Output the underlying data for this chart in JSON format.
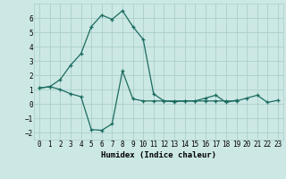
{
  "xlabel": "Humidex (Indice chaleur)",
  "bg_color": "#cce8e4",
  "grid_color": "#aacfcb",
  "line_color": "#1a6b60",
  "xlim": [
    -0.5,
    23.5
  ],
  "ylim": [
    -2.5,
    7.0
  ],
  "yticks": [
    -2,
    -1,
    0,
    1,
    2,
    3,
    4,
    5,
    6
  ],
  "xticks": [
    0,
    1,
    2,
    3,
    4,
    5,
    6,
    7,
    8,
    9,
    10,
    11,
    12,
    13,
    14,
    15,
    16,
    17,
    18,
    19,
    20,
    21,
    22,
    23
  ],
  "line1_x": [
    0,
    1,
    2,
    3,
    4,
    5,
    6,
    7,
    8,
    9,
    10,
    11,
    12,
    13,
    14,
    15,
    16,
    17,
    18,
    19,
    20,
    21,
    22,
    23
  ],
  "line1_y": [
    1.1,
    1.2,
    1.7,
    2.7,
    3.5,
    5.4,
    6.2,
    5.9,
    6.5,
    5.4,
    4.5,
    0.7,
    0.2,
    0.15,
    0.2,
    0.2,
    0.4,
    0.6,
    0.1,
    0.25,
    null,
    null,
    null,
    null
  ],
  "line2_x": [
    0,
    1,
    2,
    3,
    4,
    5,
    6,
    7,
    8,
    9,
    10,
    11,
    12,
    13,
    14,
    15,
    16,
    17,
    18,
    19,
    20,
    21,
    22,
    23
  ],
  "line2_y": [
    1.1,
    1.2,
    1.0,
    0.7,
    0.5,
    -1.8,
    -1.85,
    -1.4,
    2.3,
    0.35,
    0.2,
    0.2,
    0.2,
    0.2,
    0.2,
    0.2,
    0.2,
    0.2,
    0.2,
    0.2,
    0.4,
    0.6,
    0.1,
    0.25
  ]
}
